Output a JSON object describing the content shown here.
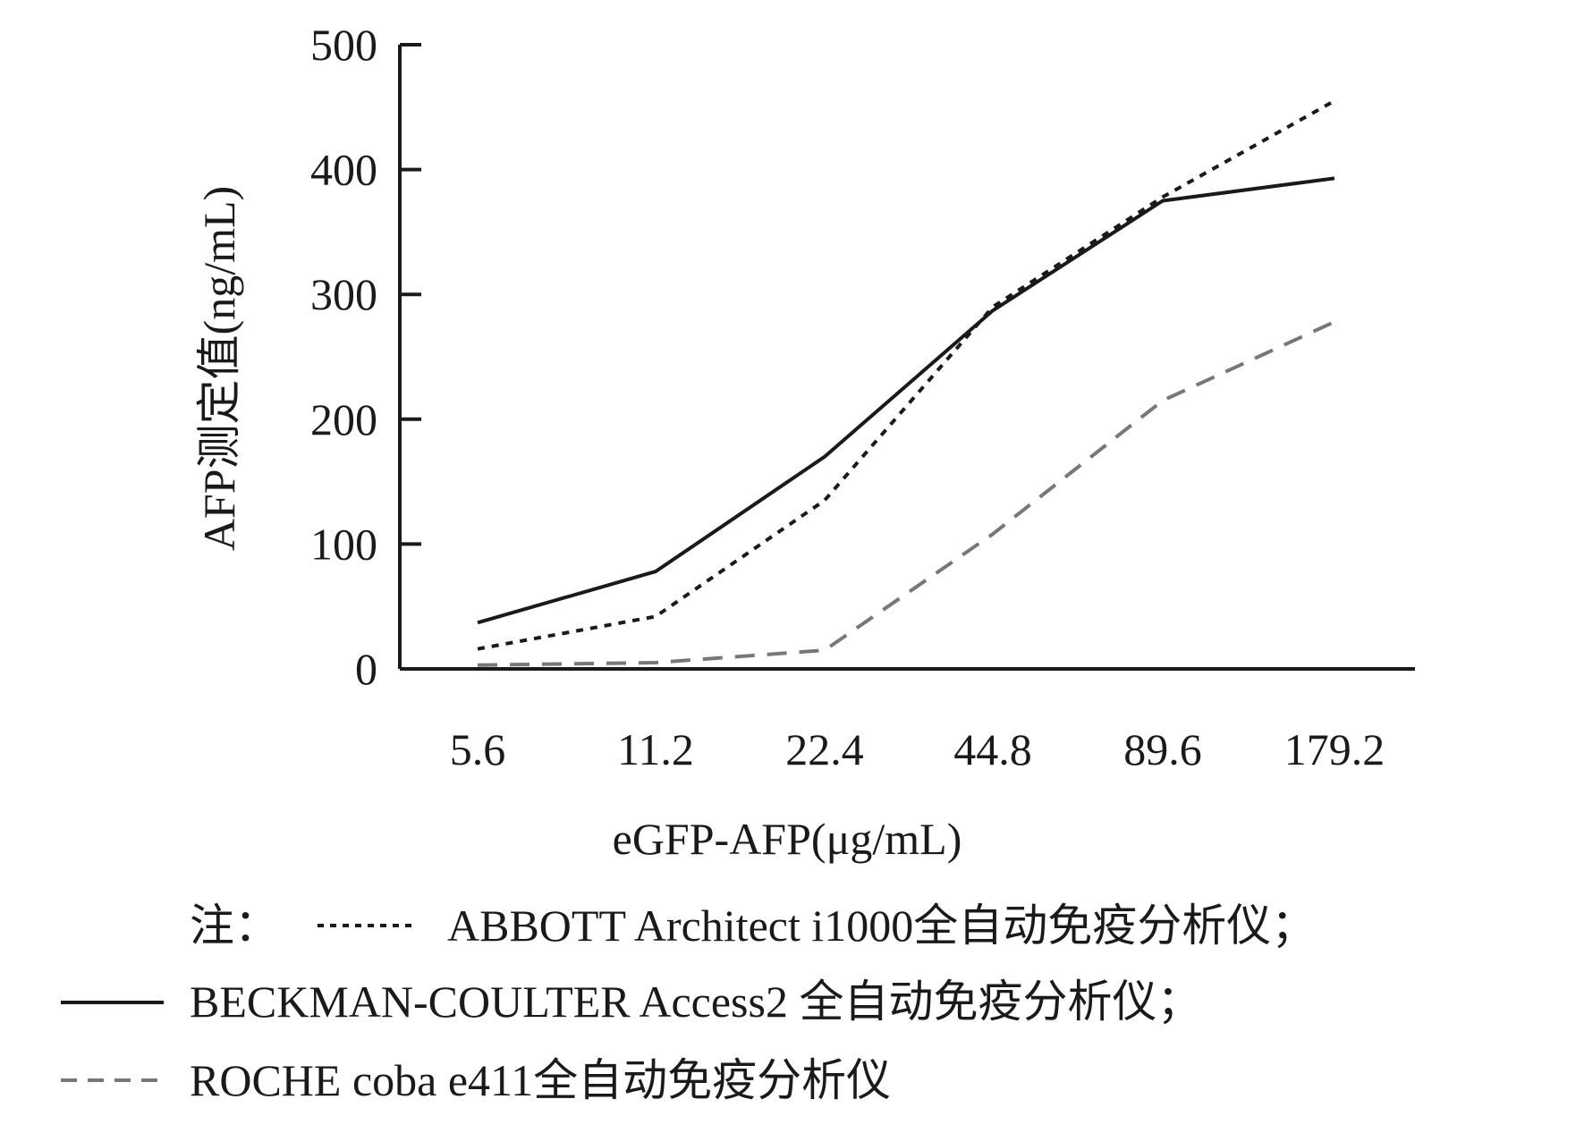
{
  "chart_data": {
    "type": "line",
    "categories": [
      "5.6",
      "11.2",
      "22.4",
      "44.8",
      "89.6",
      "179.2"
    ],
    "xlabel": "eGFP-AFP(μg/mL)",
    "ylabel": "AFP测定值(ng/mL)",
    "ylim": [
      0,
      500
    ],
    "yticks": [
      "0",
      "100",
      "200",
      "300",
      "400",
      "500"
    ],
    "grid": false,
    "series": [
      {
        "name": "ABBOTT Architect i1000全自动免疫分析仪",
        "style": "dotted",
        "color": "#1a1a1a",
        "values": [
          16,
          42,
          135,
          290,
          378,
          455
        ]
      },
      {
        "name": "BECKMAN-COULTER Access2 全自动免疫分析仪",
        "style": "solid",
        "color": "#1a1a1a",
        "values": [
          37,
          78,
          170,
          287,
          375,
          393
        ]
      },
      {
        "name": "ROCHE coba e411全自动免疫分析仪",
        "style": "dashed",
        "color": "#777777",
        "values": [
          3,
          5,
          15,
          108,
          215,
          278
        ]
      }
    ]
  },
  "legend": {
    "note_prefix": "注：",
    "line1_suffix": "；",
    "line2_suffix": "；",
    "line3_suffix": ""
  }
}
